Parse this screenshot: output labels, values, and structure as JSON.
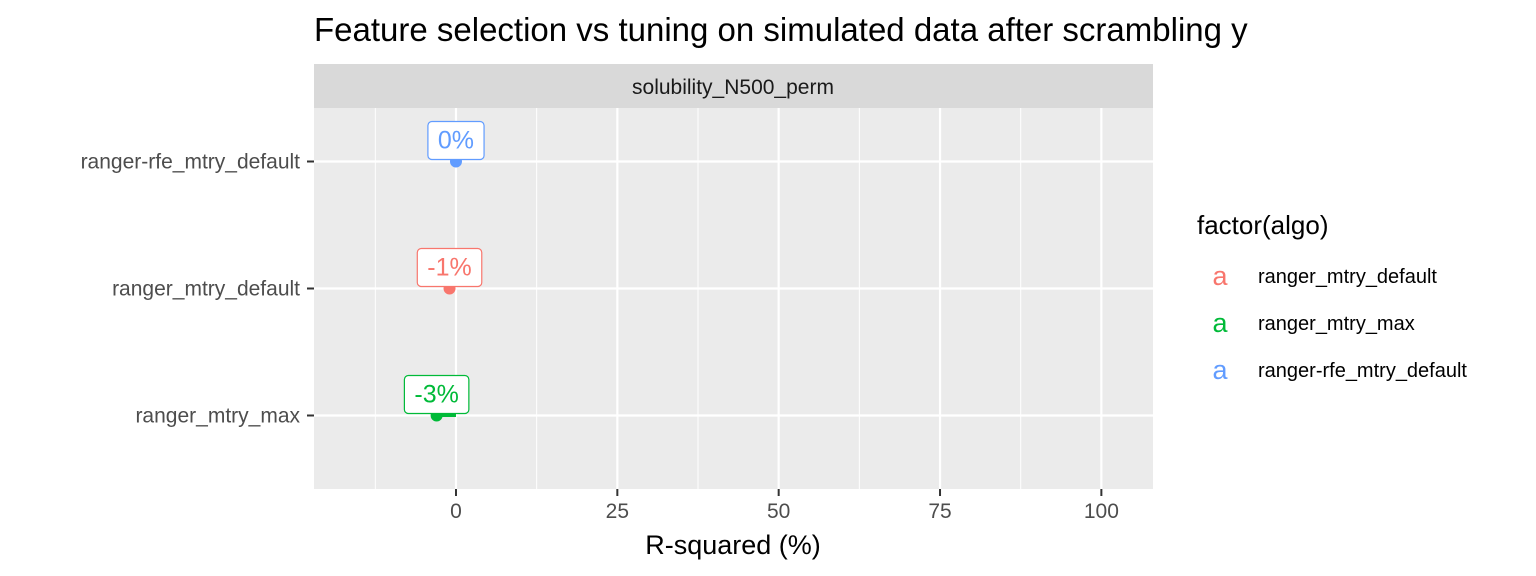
{
  "chart_data": {
    "type": "dot",
    "title": "Feature selection vs tuning on simulated data after scrambling y",
    "facet": "solubility_N500_perm",
    "xlabel": "R-squared (%)",
    "xlim": [
      -22,
      108
    ],
    "xticks": [
      0,
      25,
      50,
      75,
      100
    ],
    "categories": [
      "ranger-rfe_mtry_default",
      "ranger_mtry_default",
      "ranger_mtry_max"
    ],
    "legend": {
      "title": "factor(algo)",
      "position": "right",
      "key_glyph": "a",
      "entries": [
        {
          "name": "ranger_mtry_default",
          "color": "#F8766D"
        },
        {
          "name": "ranger_mtry_max",
          "color": "#00BA38"
        },
        {
          "name": "ranger-rfe_mtry_default",
          "color": "#619CFF"
        }
      ]
    },
    "series": [
      {
        "name": "ranger-rfe_mtry_default",
        "category": "ranger-rfe_mtry_default",
        "value": 0,
        "err_low": 0,
        "err_high": 0,
        "label": "0%",
        "color": "#619CFF"
      },
      {
        "name": "ranger_mtry_default",
        "category": "ranger_mtry_default",
        "value": -1,
        "err_low": -1,
        "err_high": -1,
        "label": "-1%",
        "color": "#F8766D"
      },
      {
        "name": "ranger_mtry_max",
        "category": "ranger_mtry_max",
        "value": -3,
        "err_low": -3,
        "err_high": 0,
        "label": "-3%",
        "color": "#00BA38"
      }
    ],
    "grid": true,
    "panel_background": "#EBEBEB",
    "strip_background": "#D9D9D9"
  }
}
